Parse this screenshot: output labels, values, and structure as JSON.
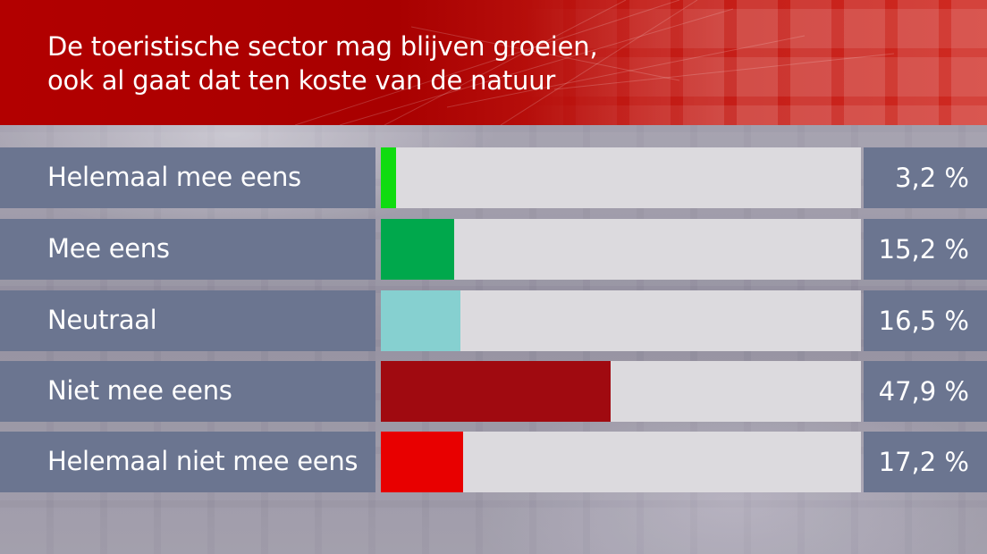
{
  "chart_data": {
    "type": "bar",
    "title": "De toeristische sector mag blijven groeien,",
    "subtitle": "ook al gaat dat ten koste van de natuur",
    "categories": [
      "Helemaal mee eens",
      "Mee eens",
      "Neutraal",
      "Niet mee eens",
      "Helemaal niet mee eens"
    ],
    "values": [
      3.2,
      15.2,
      16.5,
      47.9,
      17.2
    ],
    "value_labels": [
      "3,2 %",
      "15,2 %",
      "16,5 %",
      "47,9 %",
      "17,2 %"
    ],
    "colors": [
      "#10dc10",
      "#00a84c",
      "#86d0d0",
      "#a00a10",
      "#e80000"
    ],
    "unit": "%",
    "xlim": [
      0,
      100
    ],
    "orientation": "horizontal"
  },
  "theme": {
    "header_color": "#b20000",
    "label_box_color": "#6b7590",
    "track_color": "#dcdade"
  }
}
